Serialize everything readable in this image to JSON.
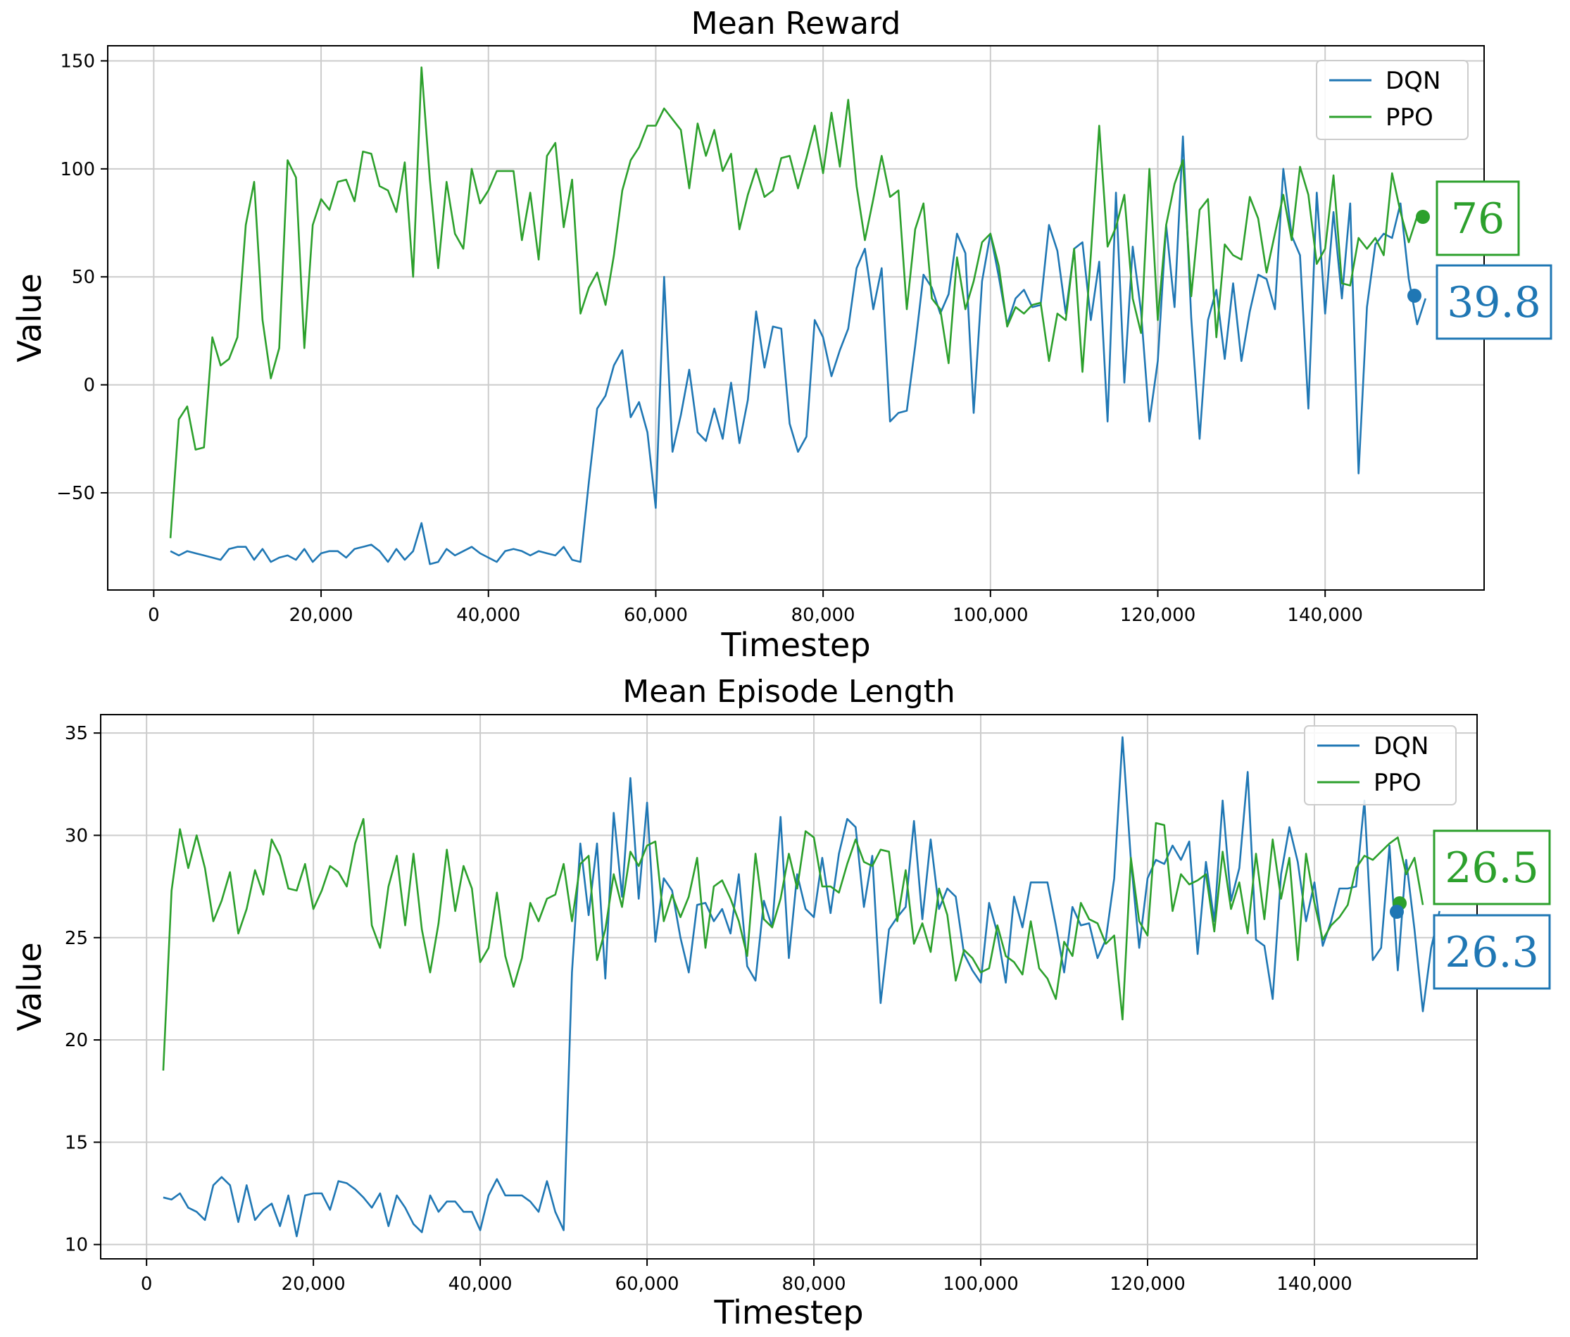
{
  "colors": {
    "dqn": "#1f77b4",
    "ppo": "#2ca02c",
    "grid": "#cccccc",
    "axis": "#000000"
  },
  "chart_data": [
    {
      "type": "line",
      "title": "Mean Reward",
      "xlabel": "Timestep",
      "ylabel": "Value",
      "xlim": [
        -5500,
        159000
      ],
      "ylim": [
        -95,
        157
      ],
      "xticks": [
        0,
        20000,
        40000,
        60000,
        80000,
        100000,
        120000,
        140000
      ],
      "xtick_labels": [
        "0",
        "20,000",
        "40,000",
        "60,000",
        "80,000",
        "100,000",
        "120,000",
        "140,000"
      ],
      "yticks": [
        -50,
        0,
        50,
        100,
        150
      ],
      "ytick_labels": [
        "−50",
        "0",
        "50",
        "100",
        "150"
      ],
      "grid": true,
      "legend": "top-right",
      "series": [
        {
          "name": "DQN",
          "color": "#1f77b4",
          "x_start": 2000,
          "x_step": 1000,
          "values": [
            -77,
            -79,
            -77,
            -78,
            -79,
            -80,
            -81,
            -76,
            -75,
            -75,
            -81,
            -76,
            -82,
            -80,
            -79,
            -81,
            -76,
            -82,
            -78,
            -77,
            -77,
            -80,
            -76,
            -75,
            -74,
            -77,
            -82,
            -76,
            -81,
            -77,
            -64,
            -83,
            -82,
            -76,
            -79,
            -77,
            -75,
            -78,
            -80,
            -82,
            -77,
            -76,
            -77,
            -79,
            -77,
            -78,
            -79,
            -75,
            -81,
            -82,
            -45,
            -11,
            -5,
            9,
            16,
            -15,
            -8,
            -22,
            -57,
            50,
            -31,
            -14,
            7,
            -22,
            -26,
            -11,
            -25,
            1,
            -27,
            -7,
            34,
            8,
            27,
            26,
            -18,
            -31,
            -24,
            30,
            22,
            4,
            16,
            26,
            54,
            63,
            35,
            54,
            -17,
            -13,
            -12,
            18,
            51,
            45,
            33,
            42,
            70,
            61,
            -13,
            48,
            70,
            50,
            28,
            40,
            44,
            36,
            37,
            74,
            62,
            33,
            63,
            66,
            30,
            57,
            -17,
            89,
            1,
            64,
            34,
            -17,
            11,
            74,
            36,
            115,
            31,
            -25,
            30,
            44,
            12,
            47,
            11,
            34,
            51,
            49,
            35,
            100,
            69,
            60,
            -11,
            89,
            33,
            80,
            40,
            84,
            -41,
            36,
            65,
            70,
            68,
            84,
            49,
            28,
            40
          ],
          "end_label": "39.8"
        },
        {
          "name": "PPO",
          "color": "#2ca02c",
          "x_start": 2000,
          "x_step": 1000,
          "values": [
            -71,
            -16,
            -10,
            -30,
            -29,
            22,
            9,
            12,
            22,
            74,
            94,
            30,
            3,
            17,
            104,
            96,
            17,
            74,
            86,
            81,
            94,
            95,
            85,
            108,
            107,
            92,
            90,
            80,
            103,
            50,
            147,
            95,
            54,
            94,
            70,
            63,
            100,
            84,
            90,
            99,
            99,
            99,
            67,
            89,
            58,
            106,
            112,
            73,
            95,
            33,
            45,
            52,
            37,
            60,
            90,
            104,
            110,
            120,
            120,
            128,
            123,
            118,
            91,
            121,
            106,
            118,
            99,
            107,
            72,
            88,
            100,
            87,
            90,
            105,
            106,
            91,
            105,
            120,
            98,
            126,
            101,
            132,
            92,
            67,
            86,
            106,
            87,
            90,
            35,
            72,
            84,
            40,
            35,
            10,
            59,
            35,
            48,
            66,
            70,
            55,
            27,
            36,
            33,
            37,
            38,
            11,
            33,
            30,
            63,
            6,
            60,
            120,
            64,
            73,
            88,
            40,
            24,
            100,
            30,
            74,
            93,
            104,
            41,
            81,
            86,
            22,
            65,
            60,
            58,
            87,
            77,
            52,
            70,
            88,
            67,
            101,
            88,
            56,
            63,
            97,
            47,
            46,
            68,
            63,
            68,
            60,
            98,
            80,
            66,
            78
          ],
          "end_label": "76"
        }
      ]
    },
    {
      "type": "line",
      "title": "Mean Episode Length",
      "xlabel": "Timestep",
      "ylabel": "Value",
      "xlim": [
        -5500,
        159500
      ],
      "ylim": [
        9.3,
        35.9
      ],
      "xticks": [
        0,
        20000,
        40000,
        60000,
        80000,
        100000,
        120000,
        140000
      ],
      "xtick_labels": [
        "0",
        "20,000",
        "40,000",
        "60,000",
        "80,000",
        "100,000",
        "120,000",
        "140,000"
      ],
      "yticks": [
        10,
        15,
        20,
        25,
        30,
        35
      ],
      "ytick_labels": [
        "10",
        "15",
        "20",
        "25",
        "30",
        "35"
      ],
      "grid": true,
      "legend": "top-right",
      "series": [
        {
          "name": "DQN",
          "color": "#1f77b4",
          "x_start": 2000,
          "x_step": 1000,
          "values": [
            12.3,
            12.2,
            12.5,
            11.8,
            11.6,
            11.2,
            12.9,
            13.3,
            12.9,
            11.1,
            12.9,
            11.2,
            11.7,
            12.0,
            10.9,
            12.4,
            10.4,
            12.4,
            12.5,
            12.5,
            11.7,
            13.1,
            13.0,
            12.7,
            12.3,
            11.8,
            12.5,
            10.9,
            12.4,
            11.8,
            11.0,
            10.6,
            12.4,
            11.6,
            12.1,
            12.1,
            11.6,
            11.6,
            10.7,
            12.4,
            13.2,
            12.4,
            12.4,
            12.4,
            12.1,
            11.6,
            13.1,
            11.6,
            10.7,
            23.3,
            29.6,
            26.1,
            29.6,
            23.0,
            31.1,
            27.0,
            32.8,
            26.9,
            31.6,
            24.8,
            27.9,
            27.3,
            25.0,
            23.3,
            26.6,
            26.7,
            25.8,
            26.4,
            25.2,
            28.1,
            23.6,
            22.9,
            26.8,
            25.5,
            30.9,
            24.0,
            28.1,
            26.4,
            26.0,
            28.9,
            26.2,
            29.1,
            30.8,
            30.4,
            26.5,
            29.0,
            21.8,
            25.4,
            26.0,
            26.5,
            30.7,
            25.9,
            29.8,
            26.4,
            27.4,
            27.0,
            24.2,
            23.4,
            22.8,
            26.7,
            25.2,
            22.8,
            27.0,
            25.5,
            27.7,
            27.7,
            27.7,
            25.6,
            23.3,
            26.5,
            25.6,
            25.7,
            24.0,
            24.9,
            27.9,
            34.8,
            28.8,
            24.5,
            27.9,
            28.8,
            28.6,
            29.5,
            28.8,
            29.7,
            24.2,
            28.7,
            25.8,
            31.7,
            26.8,
            28.4,
            33.1,
            24.9,
            24.6,
            22.0,
            28.1,
            30.4,
            28.7,
            25.8,
            27.7,
            24.6,
            25.8,
            27.4,
            27.4,
            27.5,
            31.7,
            23.9,
            24.5,
            29.5,
            23.4,
            28.8,
            25.4,
            21.4,
            24.5,
            26.3
          ],
          "end_label": "26.3"
        },
        {
          "name": "PPO",
          "color": "#2ca02c",
          "x_start": 2000,
          "x_step": 1000,
          "values": [
            18.5,
            27.3,
            30.3,
            28.4,
            30.0,
            28.4,
            25.8,
            26.8,
            28.2,
            25.2,
            26.4,
            28.3,
            27.1,
            29.8,
            29.0,
            27.4,
            27.3,
            28.6,
            26.4,
            27.3,
            28.5,
            28.2,
            27.5,
            29.6,
            30.8,
            25.6,
            24.5,
            27.5,
            29.0,
            25.6,
            29.1,
            25.4,
            23.3,
            25.7,
            29.3,
            26.3,
            28.5,
            27.4,
            23.8,
            24.5,
            27.2,
            24.1,
            22.6,
            24.0,
            26.7,
            25.8,
            26.9,
            27.1,
            28.6,
            25.8,
            28.6,
            29.0,
            23.9,
            25.4,
            28.1,
            26.5,
            29.2,
            28.5,
            29.5,
            29.7,
            25.8,
            27.1,
            26.0,
            27.0,
            28.9,
            24.5,
            27.5,
            27.8,
            26.9,
            25.8,
            24.1,
            29.1,
            25.9,
            25.5,
            26.9,
            29.1,
            27.4,
            30.2,
            29.9,
            27.5,
            27.5,
            27.2,
            28.6,
            29.8,
            28.7,
            28.5,
            29.3,
            29.2,
            25.8,
            28.3,
            24.7,
            25.7,
            24.3,
            27.4,
            26.1,
            22.9,
            24.4,
            24.0,
            23.3,
            23.5,
            25.6,
            24.1,
            23.8,
            23.2,
            25.8,
            23.5,
            23.0,
            22.0,
            24.8,
            24.1,
            26.7,
            25.9,
            25.7,
            24.7,
            25.1,
            21.0,
            28.9,
            25.8,
            25.1,
            30.6,
            30.5,
            26.3,
            28.1,
            27.6,
            27.8,
            28.1,
            25.3,
            29.2,
            26.4,
            27.7,
            25.2,
            29.1,
            25.9,
            29.8,
            26.9,
            28.9,
            23.9,
            29.1,
            26.7,
            24.9,
            25.6,
            26.0,
            26.6,
            28.4,
            29.0,
            28.8,
            29.2,
            29.6,
            29.9,
            28.1,
            28.9,
            26.6
          ],
          "end_label": "26.5"
        }
      ]
    }
  ]
}
